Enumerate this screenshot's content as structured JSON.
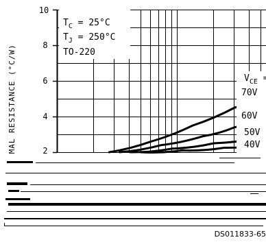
{
  "chart_data": {
    "type": "line",
    "title": "",
    "ylabel": "RMAL RESISTANCE (°C/W)",
    "ylim": [
      2,
      10
    ],
    "yticks": [
      2,
      4,
      6,
      8,
      10
    ],
    "ytick_labels": [
      "2",
      "4",
      "6",
      "8",
      "10"
    ],
    "grid": true,
    "conditions": [
      "T_C = 25°C",
      "T_J = 250°C",
      "TO-220"
    ],
    "legend_title": "V_CE =",
    "series": [
      {
        "name": "70V",
        "values": [
          [
            0.25,
            2.0
          ],
          [
            0.45,
            2.6
          ],
          [
            0.65,
            3.5
          ],
          [
            0.85,
            4.5
          ],
          [
            1.0,
            5.2
          ]
        ]
      },
      {
        "name": "60V",
        "values": [
          [
            0.3,
            2.0
          ],
          [
            0.5,
            2.4
          ],
          [
            0.7,
            2.9
          ],
          [
            0.85,
            3.4
          ],
          [
            1.0,
            3.9
          ]
        ]
      },
      {
        "name": "50V",
        "values": [
          [
            0.35,
            2.0
          ],
          [
            0.55,
            2.2
          ],
          [
            0.75,
            2.5
          ],
          [
            1.0,
            2.85
          ]
        ]
      },
      {
        "name": "40V",
        "values": [
          [
            0.4,
            2.0
          ],
          [
            0.6,
            2.1
          ],
          [
            0.8,
            2.25
          ],
          [
            1.0,
            2.45
          ]
        ]
      }
    ]
  },
  "labels": {
    "tc": "T",
    "tc_sub": "C",
    "tc_val": " = 25°C",
    "tj": "T",
    "tj_sub": "J",
    "tj_val": " = 250°C",
    "package": "TO-220",
    "vce": "V",
    "vce_sub": "CE",
    "vce_eq": " =",
    "s70": "70V",
    "s60": "60V",
    "s50": "50V",
    "s40": "40V",
    "doc_id": "DS011833-65",
    "ylabel": "RMAL RESISTANCE (°C/W)"
  }
}
